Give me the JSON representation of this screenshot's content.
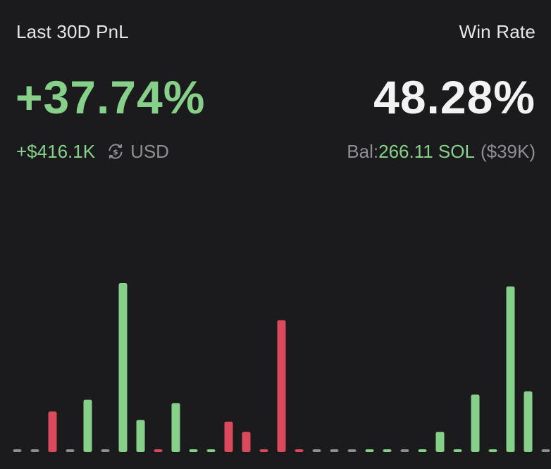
{
  "header": {
    "pnl_label": "Last 30D PnL",
    "winrate_label": "Win Rate"
  },
  "pnl": {
    "percent": "+37.74%",
    "usd": "+$416.1K",
    "currency_icon": "swap-currency-icon",
    "currency": "USD"
  },
  "winrate": {
    "value": "48.28%"
  },
  "balance": {
    "label": "Bal:",
    "value": "266.11 SOL",
    "usd": "($39K)"
  },
  "colors": {
    "positive": "#86d08a",
    "negative": "#d94a5c",
    "neutral": "#8e8e93",
    "background": "#1b1b1d"
  },
  "chart_data": {
    "type": "bar",
    "title": "",
    "xlabel": "",
    "ylabel": "",
    "ylim": [
      0,
      100
    ],
    "values": [
      0,
      0,
      24,
      0,
      31,
      0,
      100,
      19,
      1,
      29,
      1,
      1,
      18,
      12,
      1,
      78,
      1,
      0,
      0,
      0,
      1,
      1,
      0,
      1,
      12,
      1,
      34,
      1,
      98,
      36,
      0
    ],
    "signs": [
      "zero",
      "zero",
      "neg",
      "zero",
      "pos",
      "zero",
      "pos",
      "pos",
      "neg",
      "pos",
      "pos",
      "pos",
      "neg",
      "neg",
      "neg",
      "neg",
      "neg",
      "zero",
      "zero",
      "zero",
      "pos",
      "pos",
      "zero",
      "pos",
      "pos",
      "pos",
      "pos",
      "pos",
      "pos",
      "pos",
      "zero"
    ]
  }
}
